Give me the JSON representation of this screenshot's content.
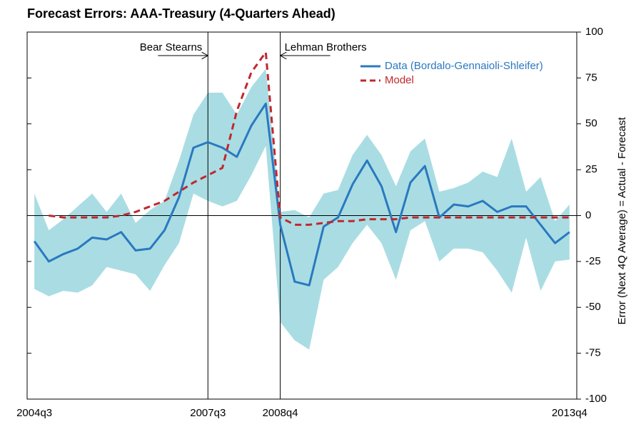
{
  "chart_data": {
    "type": "line",
    "title": "Forecast Errors: AAA-Treasury (4-Quarters Ahead)",
    "y_label": "Error (Next 4Q Average) = Actual - Forecast",
    "categories": [
      "2004q3",
      null,
      null,
      null,
      null,
      null,
      null,
      null,
      null,
      null,
      null,
      null,
      "2007q3",
      null,
      null,
      null,
      null,
      "2008q4",
      null,
      null,
      null,
      null,
      null,
      null,
      null,
      null,
      null,
      null,
      null,
      null,
      null,
      null,
      null,
      null,
      null,
      null,
      null,
      "2013q4"
    ],
    "series": [
      {
        "name": "Data (Bordalo-Gennaioli-Shleifer)",
        "color": "#2a78c0",
        "dashed": false,
        "values": [
          -14,
          -25,
          -21,
          -18,
          -12,
          -13,
          -9,
          -19,
          -18,
          -8,
          10,
          37,
          40,
          37,
          32,
          49,
          61,
          -5,
          -36,
          -38,
          -6,
          -1,
          17,
          30,
          16,
          -9,
          18,
          27,
          -1,
          6,
          5,
          8,
          2,
          5,
          5,
          -5,
          -15,
          -9
        ]
      },
      {
        "name": "Model",
        "color": "#c0282e",
        "dashed": true,
        "values": [
          null,
          0,
          -1,
          -1,
          -1,
          -1,
          0,
          2,
          5,
          8,
          13,
          18,
          22,
          26,
          57,
          78,
          89,
          -1,
          -5,
          -5,
          -4,
          -3,
          -3,
          -2,
          -2,
          -2,
          -1,
          -1,
          -1,
          -1,
          -1,
          -1,
          -1,
          -1,
          -1,
          -1,
          -1,
          -1
        ]
      }
    ],
    "band": {
      "color": "#a9dde3",
      "upper": [
        12,
        -8,
        -2,
        5,
        12,
        2,
        12,
        -4,
        3,
        8,
        30,
        55,
        67,
        67,
        55,
        70,
        80,
        2,
        3,
        -1,
        12,
        14,
        33,
        44,
        33,
        16,
        35,
        42,
        13,
        15,
        18,
        24,
        21,
        42,
        13,
        21,
        -3,
        6
      ],
      "lower": [
        -40,
        -44,
        -41,
        -42,
        -38,
        -28,
        -30,
        -32,
        -41,
        -27,
        -15,
        12,
        8,
        5,
        8,
        22,
        38,
        -58,
        -68,
        -73,
        -35,
        -28,
        -15,
        -5,
        -15,
        -35,
        -8,
        -3,
        -25,
        -18,
        -18,
        -20,
        -30,
        -42,
        -12,
        -41,
        -25,
        -24
      ]
    },
    "annotations": [
      {
        "text": "Bear Stearns",
        "index": 12,
        "side": "left"
      },
      {
        "text": "Lehman Brothers",
        "index": 17,
        "side": "right"
      }
    ],
    "ylim": [
      -100,
      100
    ],
    "yticks": [
      -100,
      -75,
      -50,
      -25,
      0,
      25,
      50,
      75,
      100
    ],
    "zero_line": true,
    "legend": "upper right"
  }
}
